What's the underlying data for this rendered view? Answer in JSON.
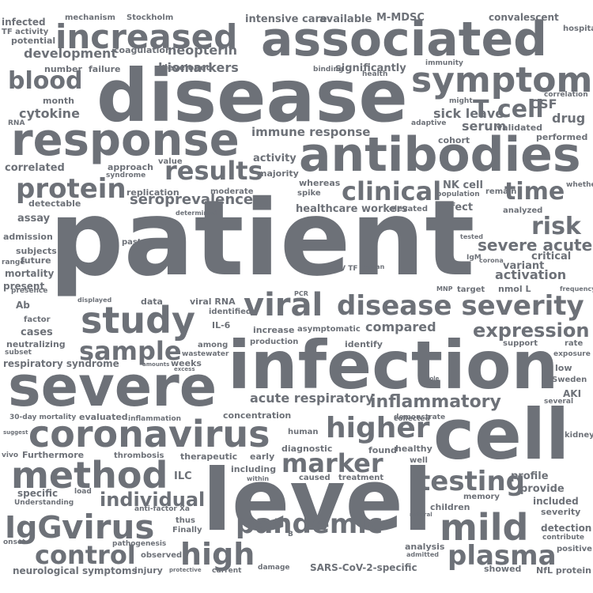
{
  "cloud": {
    "color": "#6d7178",
    "background": "#ffffff",
    "words": [
      "patient",
      "disease",
      "level",
      "infection",
      "severe",
      "cell",
      "associated",
      "antibodies",
      "response",
      "symptom",
      "coronavirus",
      "viral",
      "disease severity",
      "increased",
      "method",
      "study",
      "virus",
      "mild",
      "pandemic",
      "IgG",
      "high",
      "higher",
      "clinical",
      "sample",
      "testing",
      "marker",
      "results",
      "protein",
      "control",
      "plasma",
      "time",
      "T cell",
      "blood",
      "risk",
      "individual",
      "expression",
      "inflammatory",
      "severe acute",
      "acute respiratory",
      "immune response",
      "seroprevalence",
      "compared",
      "activation",
      "healthcare workers",
      "biomarkers",
      "neopterin",
      "development",
      "cytokine",
      "serum",
      "sick leave",
      "drug",
      "CSF",
      "M-MDSC",
      "convalescent",
      "intensive care",
      "available",
      "Stockholm",
      "mechanism",
      "infected",
      "TF activity",
      "potential",
      "coagulation",
      "number",
      "failure",
      "developed",
      "binding",
      "significantly",
      "immunity",
      "health",
      "hospital",
      "correlation",
      "month",
      "RNA",
      "might",
      "adaptive",
      "validated",
      "performed",
      "cohort",
      "correlated",
      "approach",
      "syndrome",
      "value",
      "activity",
      "majority",
      "whereas",
      "NK cell",
      "population",
      "remain",
      "whether",
      "detectable",
      "replication",
      "moderate",
      "spike",
      "elevated",
      "effect",
      "analyzed",
      "assay",
      "determined",
      "tested",
      "admission",
      "past",
      "subjects",
      "future",
      "range",
      "mortality",
      "present",
      "presence",
      "critical",
      "variant",
      "IgM",
      "corona",
      "EV TF",
      "organ",
      "PCR",
      "MNP",
      "target",
      "nmol L",
      "frequency",
      "Ab",
      "displayed",
      "data",
      "viral RNA",
      "identified",
      "factor",
      "cases",
      "IL-6",
      "increase",
      "asymptomatic",
      "rate",
      "exposure",
      "neutralizing",
      "subset",
      "respiratory syndrome",
      "among",
      "wastewater",
      "production",
      "identify",
      "support",
      "amounts",
      "weeks",
      "excess",
      "low",
      "Sweden",
      "role",
      "AKI",
      "several",
      "30-day mortality",
      "evaluated",
      "inflammation",
      "concentration",
      "demonstrate",
      "collected",
      "suggest",
      "human",
      "kidney",
      "diagnostic",
      "vivo",
      "Furthermore",
      "thrombosis",
      "therapeutic",
      "early",
      "found",
      "healthy",
      "well",
      "ILC",
      "including",
      "caused",
      "within",
      "treatment",
      "profile",
      "provide",
      "specific",
      "load",
      "Understanding",
      "memory",
      "included",
      "children",
      "natural",
      "severity",
      "anti-factor Xa",
      "thus",
      "detection",
      "contribute",
      "Finally",
      "onset",
      "pathogenesis",
      "observed",
      "B",
      "analysis",
      "admitted",
      "positive",
      "neurological symptoms",
      "injury",
      "protective",
      "current",
      "damage",
      "SARS-CoV-2-specific",
      "showed",
      "NfL protein"
    ]
  }
}
